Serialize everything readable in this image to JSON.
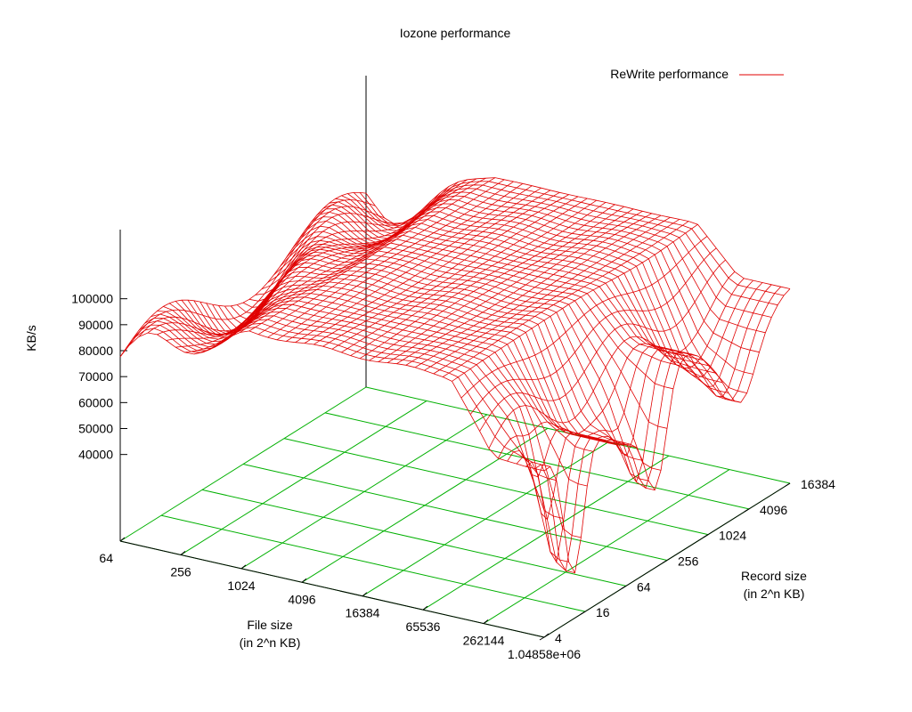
{
  "chart_data": {
    "type": "surface",
    "title": "Iozone performance",
    "zlabel": "KB/s",
    "xlabel_line1": "File size",
    "xlabel_line2": "(in 2^n KB)",
    "ylabel_line1": "Record size",
    "ylabel_line2": "(in 2^n KB)",
    "x_ticks": [
      "64",
      "256",
      "1024",
      "4096",
      "16384",
      "65536",
      "262144",
      "1.04858e+06"
    ],
    "y_ticks": [
      "4",
      "16",
      "64",
      "256",
      "1024",
      "4096",
      "16384"
    ],
    "z_ticks": [
      "40000",
      "50000",
      "60000",
      "70000",
      "80000",
      "90000",
      "100000"
    ],
    "zlim": [
      20000,
      140000
    ],
    "legend": {
      "label": "ReWrite performance",
      "position": "top-right"
    },
    "colors": {
      "surface": "#e00000",
      "grid": "#00b000",
      "axis": "#000000"
    },
    "values_note_kbps": {
      "plateau": 112000,
      "small_file_range": [
        82000,
        100000
      ],
      "large_file_dips": [
        37000,
        50000,
        63000
      ]
    }
  }
}
